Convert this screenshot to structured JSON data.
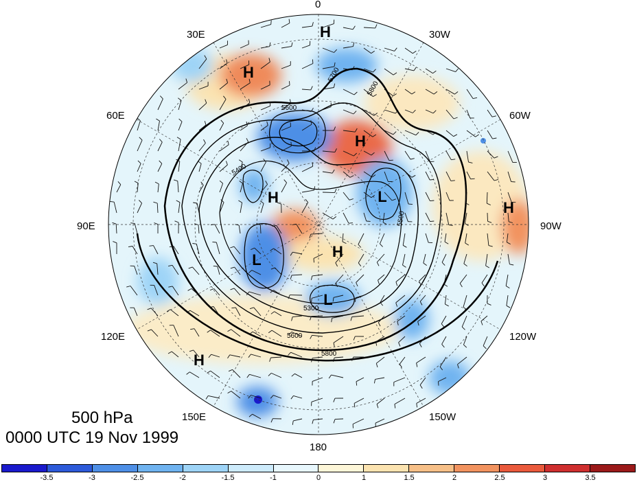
{
  "title": {
    "level": "500 hPa",
    "time": "0000 UTC 19 Nov 1999"
  },
  "longitude_labels": [
    "0",
    "30W",
    "60W",
    "90W",
    "120W",
    "150W",
    "180",
    "150E",
    "120E",
    "90E",
    "60E",
    "30E"
  ],
  "pressure_centers": [
    "H",
    "H",
    "H",
    "H",
    "H",
    "H",
    "H",
    "L",
    "L",
    "L"
  ],
  "contour_labels": [
    "5700",
    "5800",
    "5600",
    "5400",
    "5500",
    "5300",
    "5600",
    "5800"
  ],
  "colorbar": {
    "ticks": [
      "-3.5",
      "-3",
      "-2.5",
      "-2",
      "-1.5",
      "-1",
      "0",
      "1",
      "1.5",
      "2",
      "2.5",
      "3",
      "3.5"
    ],
    "colors": [
      "#1a1acc",
      "#2d5ad9",
      "#4e8fe6",
      "#6fb3f0",
      "#9ed4f7",
      "#cdebfb",
      "#e8f7fd",
      "#fdf6d8",
      "#fbe3b0",
      "#f7c088",
      "#f2935f",
      "#ea5a3c",
      "#cf2f2f",
      "#9b1a1a"
    ]
  }
}
